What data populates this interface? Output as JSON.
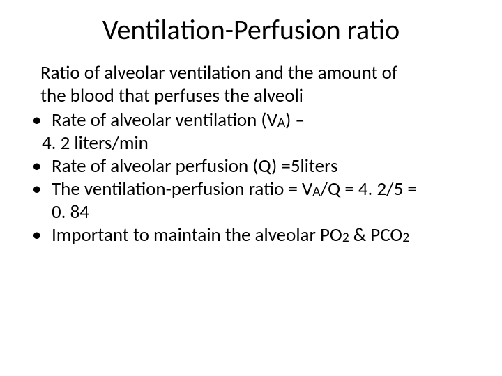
{
  "title": "Ventilation-Perfusion ratio",
  "intro_line1": "Ratio of  alveolar ventilation and the amount of",
  "intro_line2": "the blood that perfuses the alveoli",
  "bullets": {
    "b1": {
      "line1_pre": "Rate of alveolar ventilation (V",
      "sub1": "A",
      "line1_post": ") –",
      "line2": "4. 2 liters/min"
    },
    "b2": "Rate of alveolar perfusion (Q) =5liters",
    "b3": {
      "pre": "The ventilation-perfusion ratio = V",
      "sub": "A",
      "mid": "/Q = 4. 2/5 =",
      "line2": "0. 84"
    },
    "b4": {
      "pre": "Important to  maintain the  alveolar PO",
      "sub1": "2",
      "mid": " & PCO",
      "sub2": "2"
    }
  }
}
